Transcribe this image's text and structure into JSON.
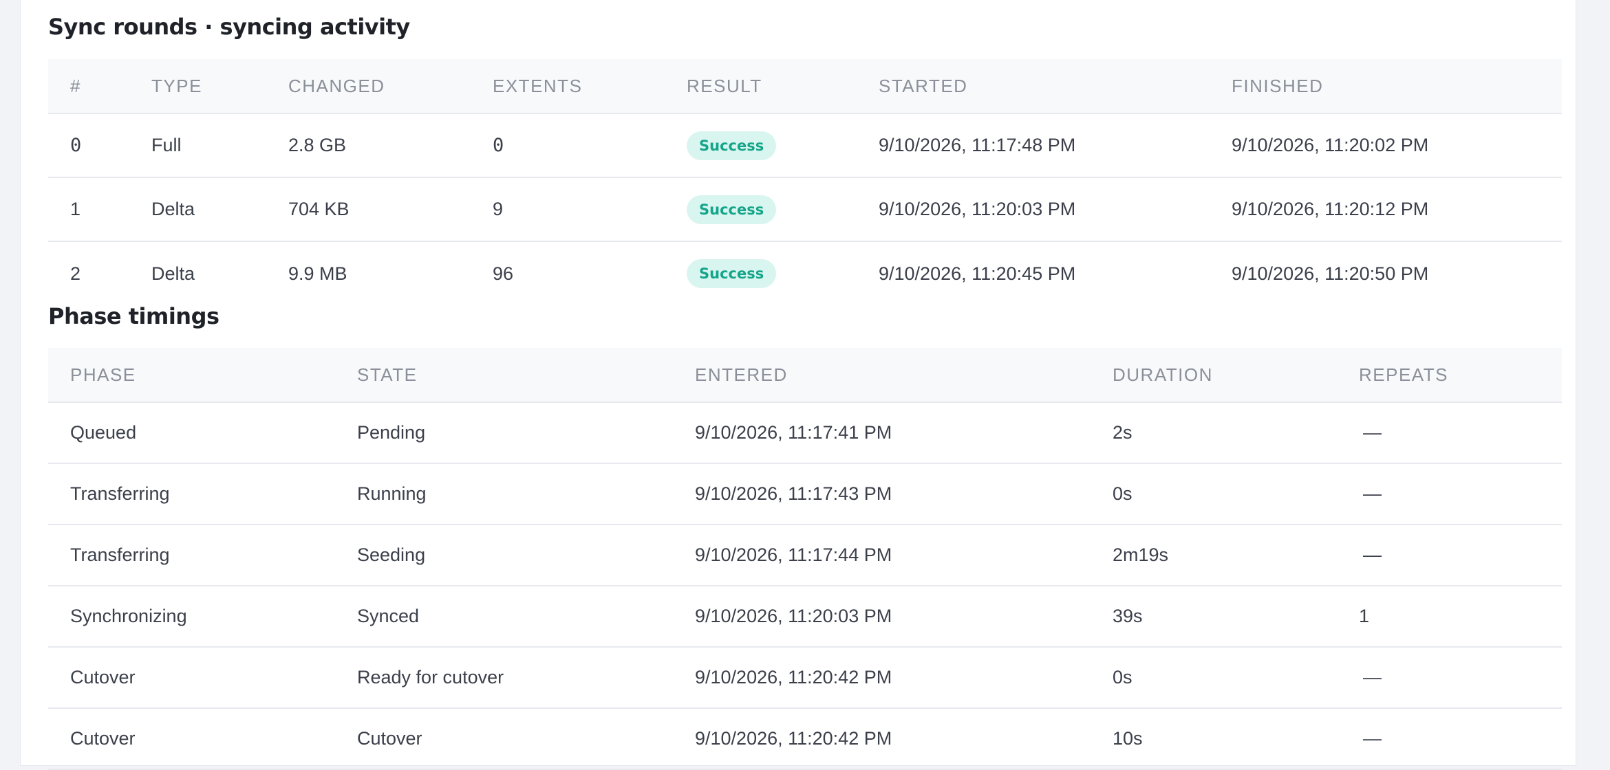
{
  "sync_rounds": {
    "title": "Sync rounds · syncing activity",
    "columns": [
      "#",
      "TYPE",
      "CHANGED",
      "EXTENTS",
      "RESULT",
      "STARTED",
      "FINISHED"
    ],
    "rows": [
      {
        "index": "0",
        "type": "Full",
        "changed": "2.8 GB",
        "extents": "0",
        "result": "Success",
        "started": "9/10/2026, 11:17:48 PM",
        "finished": "9/10/2026, 11:20:02 PM"
      },
      {
        "index": "1",
        "type": "Delta",
        "changed": "704 KB",
        "extents": "9",
        "result": "Success",
        "started": "9/10/2026, 11:20:03 PM",
        "finished": "9/10/2026, 11:20:12 PM"
      },
      {
        "index": "2",
        "type": "Delta",
        "changed": "9.9 MB",
        "extents": "96",
        "result": "Success",
        "started": "9/10/2026, 11:20:45 PM",
        "finished": "9/10/2026, 11:20:50 PM"
      }
    ],
    "result_badge_bg": "#d9f5ef",
    "result_badge_fg": "#13a58a"
  },
  "phase_timings": {
    "title": "Phase timings",
    "columns": [
      "PHASE",
      "STATE",
      "ENTERED",
      "DURATION",
      "REPEATS"
    ],
    "rows": [
      {
        "phase": "Queued",
        "state": "Pending",
        "entered": "9/10/2026, 11:17:41 PM",
        "duration": "2s",
        "repeats": "—"
      },
      {
        "phase": "Transferring",
        "state": "Running",
        "entered": "9/10/2026, 11:17:43 PM",
        "duration": "0s",
        "repeats": "—"
      },
      {
        "phase": "Transferring",
        "state": "Seeding",
        "entered": "9/10/2026, 11:17:44 PM",
        "duration": "2m19s",
        "repeats": "—"
      },
      {
        "phase": "Synchronizing",
        "state": "Synced",
        "entered": "9/10/2026, 11:20:03 PM",
        "duration": "39s",
        "repeats": "1"
      },
      {
        "phase": "Cutover",
        "state": "Ready for cutover",
        "entered": "9/10/2026, 11:20:42 PM",
        "duration": "0s",
        "repeats": "—"
      },
      {
        "phase": "Cutover",
        "state": "Cutover",
        "entered": "9/10/2026, 11:20:42 PM",
        "duration": "10s",
        "repeats": "—"
      }
    ]
  }
}
